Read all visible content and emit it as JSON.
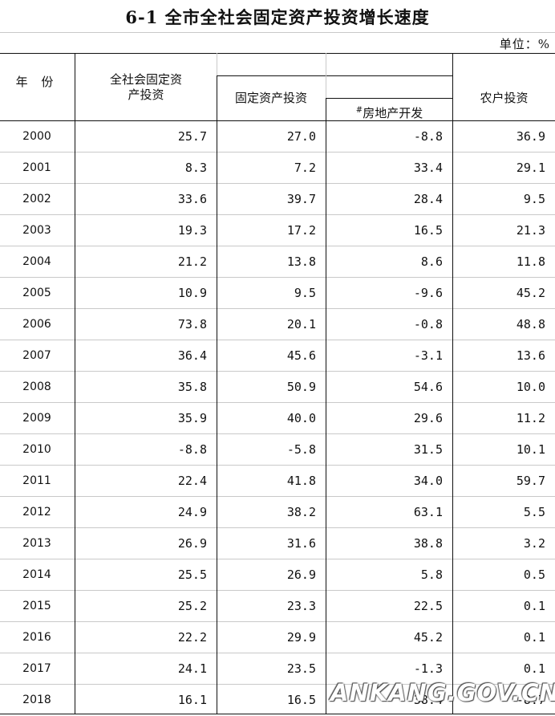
{
  "title": "6-1 全市全社会固定资产投资增长速度",
  "unit": "单位：%",
  "headers": {
    "year": "年 份",
    "total": "全社会固定资产投资",
    "fixed": "固定资产投资",
    "real_estate": "房地产开发",
    "real_estate_mark": "#",
    "farm": "农户投资"
  },
  "rows": [
    {
      "year": "2000",
      "total": "25.7",
      "fixed": "27.0",
      "real": "-8.8",
      "farm": "36.9"
    },
    {
      "year": "2001",
      "total": "8.3",
      "fixed": "7.2",
      "real": "33.4",
      "farm": "29.1"
    },
    {
      "year": "2002",
      "total": "33.6",
      "fixed": "39.7",
      "real": "28.4",
      "farm": "9.5"
    },
    {
      "year": "2003",
      "total": "19.3",
      "fixed": "17.2",
      "real": "16.5",
      "farm": "21.3"
    },
    {
      "year": "2004",
      "total": "21.2",
      "fixed": "13.8",
      "real": "8.6",
      "farm": "11.8"
    },
    {
      "year": "2005",
      "total": "10.9",
      "fixed": "9.5",
      "real": "-9.6",
      "farm": "45.2"
    },
    {
      "year": "2006",
      "total": "73.8",
      "fixed": "20.1",
      "real": "-0.8",
      "farm": "48.8"
    },
    {
      "year": "2007",
      "total": "36.4",
      "fixed": "45.6",
      "real": "-3.1",
      "farm": "13.6"
    },
    {
      "year": "2008",
      "total": "35.8",
      "fixed": "50.9",
      "real": "54.6",
      "farm": "10.0"
    },
    {
      "year": "2009",
      "total": "35.9",
      "fixed": "40.0",
      "real": "29.6",
      "farm": "11.2"
    },
    {
      "year": "2010",
      "total": "-8.8",
      "fixed": "-5.8",
      "real": "31.5",
      "farm": "10.1"
    },
    {
      "year": "2011",
      "total": "22.4",
      "fixed": "41.8",
      "real": "34.0",
      "farm": "59.7"
    },
    {
      "year": "2012",
      "total": "24.9",
      "fixed": "38.2",
      "real": "63.1",
      "farm": "5.5"
    },
    {
      "year": "2013",
      "total": "26.9",
      "fixed": "31.6",
      "real": "38.8",
      "farm": "3.2"
    },
    {
      "year": "2014",
      "total": "25.5",
      "fixed": "26.9",
      "real": "5.8",
      "farm": "0.5"
    },
    {
      "year": "2015",
      "total": "25.2",
      "fixed": "23.3",
      "real": "22.5",
      "farm": "0.1"
    },
    {
      "year": "2016",
      "total": "22.2",
      "fixed": "29.9",
      "real": "45.2",
      "farm": "0.1"
    },
    {
      "year": "2017",
      "total": "24.1",
      "fixed": "23.5",
      "real": "-1.3",
      "farm": "0.1"
    },
    {
      "year": "2018",
      "total": "16.1",
      "fixed": "16.5",
      "real": "38.4",
      "farm": "-8.7"
    }
  ],
  "watermark": "ANKANG.GOV.CN"
}
